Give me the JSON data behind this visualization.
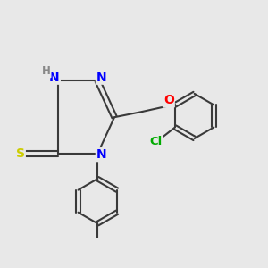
{
  "bg_color": "#e8e8e8",
  "bond_color": "#3a3a3a",
  "bond_width": 1.5,
  "atom_colors": {
    "N": "#0000ff",
    "S": "#cccc00",
    "O": "#ff0000",
    "Cl": "#00aa00",
    "H": "#888888",
    "C": "#3a3a3a"
  },
  "font_size_atom": 10,
  "font_size_small": 8.5
}
